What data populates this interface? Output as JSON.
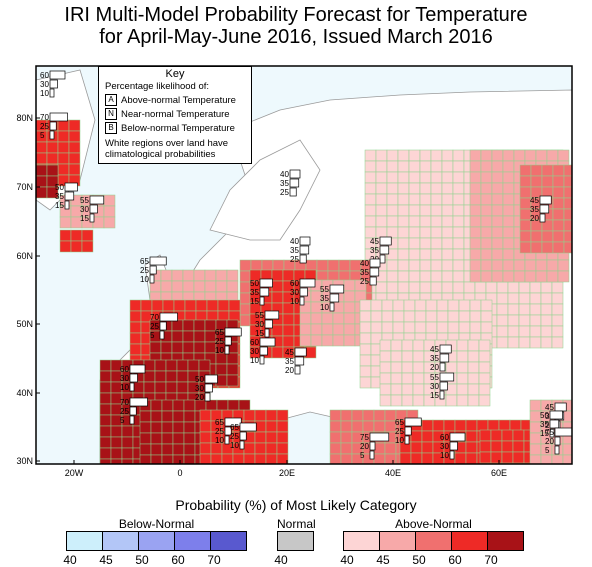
{
  "title_line1": "IRI Multi-Model Probability Forecast for Temperature",
  "title_line2": "for April-May-June 2016, Issued March 2016",
  "key": {
    "title": "Key",
    "subtitle": "Percentage likelihood of:",
    "items": [
      {
        "letter": "A",
        "label": "Above-normal Temperature"
      },
      {
        "letter": "N",
        "label": "Near-normal Temperature"
      },
      {
        "letter": "B",
        "label": "Below-normal Temperature"
      }
    ],
    "note_line1": "White regions over land have",
    "note_line2": "climatological probabilities"
  },
  "axes": {
    "lat_labels": [
      "80N",
      "70N",
      "60N",
      "50N",
      "40N",
      "30N"
    ],
    "lon_labels": [
      "20W",
      "0",
      "20E",
      "40E",
      "60E"
    ]
  },
  "stations": [
    {
      "a": "60",
      "n": "30",
      "b": "10"
    },
    {
      "a": "70",
      "n": "25",
      "b": "5"
    },
    {
      "a": "50",
      "n": "35",
      "b": "15"
    },
    {
      "a": "55",
      "n": "30",
      "b": "15"
    },
    {
      "a": "40",
      "n": "35",
      "b": "25"
    },
    {
      "a": "45",
      "n": "35",
      "b": "20"
    },
    {
      "a": "40",
      "n": "35",
      "b": "25"
    },
    {
      "a": "45",
      "n": "35",
      "b": "20"
    },
    {
      "a": "65",
      "n": "25",
      "b": "10"
    },
    {
      "a": "50",
      "n": "35",
      "b": "15"
    },
    {
      "a": "60",
      "n": "30",
      "b": "10"
    },
    {
      "a": "55",
      "n": "35",
      "b": "10"
    },
    {
      "a": "40",
      "n": "35",
      "b": "25"
    },
    {
      "a": "70",
      "n": "25",
      "b": "5"
    },
    {
      "a": "65",
      "n": "25",
      "b": "10"
    },
    {
      "a": "55",
      "n": "30",
      "b": "15"
    },
    {
      "a": "60",
      "n": "30",
      "b": "10"
    },
    {
      "a": "45",
      "n": "35",
      "b": "20"
    },
    {
      "a": "45",
      "n": "35",
      "b": "20"
    },
    {
      "a": "55",
      "n": "30",
      "b": "15"
    },
    {
      "a": "60",
      "n": "30",
      "b": "10"
    },
    {
      "a": "50",
      "n": "30",
      "b": "20"
    },
    {
      "a": "70",
      "n": "25",
      "b": "5"
    },
    {
      "a": "65",
      "n": "25",
      "b": "10"
    },
    {
      "a": "65",
      "n": "25",
      "b": "10"
    },
    {
      "a": "75",
      "n": "20",
      "b": "5"
    },
    {
      "a": "60",
      "n": "30",
      "b": "10"
    },
    {
      "a": "45",
      "n": "35",
      "b": "20"
    },
    {
      "a": "50",
      "n": "35",
      "b": "15"
    },
    {
      "a": "75",
      "n": "20",
      "b": "5"
    },
    {
      "a": "65",
      "n": "25",
      "b": "10"
    }
  ],
  "legend": {
    "title": "Probability (%) of Most Likely Category",
    "below": {
      "label": "Below-Normal",
      "colors": [
        "#cdeffb",
        "#b3c6f7",
        "#9aa3f2",
        "#7d7feb",
        "#5959cf"
      ],
      "ticks": [
        "40",
        "45",
        "50",
        "60",
        "70"
      ]
    },
    "normal": {
      "label": "Normal",
      "color": "#c7c7c7",
      "ticks": [
        "40"
      ]
    },
    "above": {
      "label": "Above-Normal",
      "colors": [
        "#fdd5d5",
        "#f7a9a9",
        "#f0706f",
        "#ee2a26",
        "#a81217"
      ],
      "ticks": [
        "40",
        "45",
        "50",
        "60",
        "70"
      ]
    }
  },
  "colors": {
    "ocean": "#eef9fd",
    "above40": "#fdd5d5",
    "above45": "#f7a9a9",
    "above50": "#f0706f",
    "above60": "#ee2a26",
    "above70": "#a81217",
    "grid_border": "#8bd48b",
    "coast": "#9a9a9a"
  }
}
